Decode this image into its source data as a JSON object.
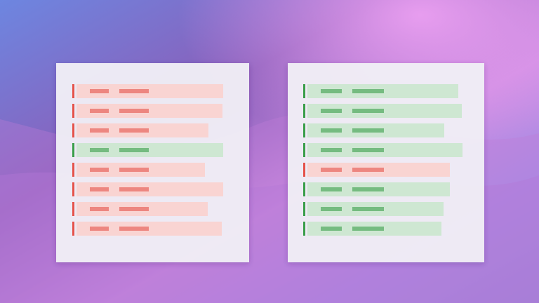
{
  "panels": [
    {
      "row_colors": [
        "#e5524a",
        "#e5524a",
        "#e5524a",
        "#3a9e4a",
        "#e5524a",
        "#e5524a",
        "#e5524a",
        "#e5524a"
      ]
    },
    {
      "row_colors": [
        "#3a9e4a",
        "#3a9e4a",
        "#3a9e4a",
        "#3a9e4a",
        "#e5524a",
        "#3a9e4a",
        "#3a9e4a",
        "#3a9e4a"
      ]
    }
  ]
}
